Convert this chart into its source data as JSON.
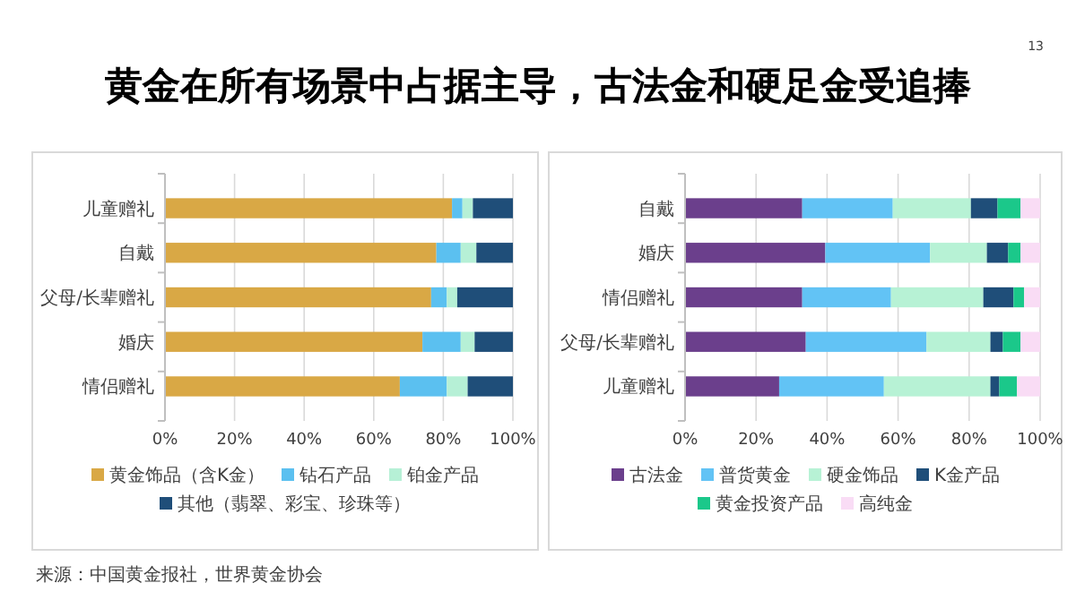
{
  "chart_data": [
    {
      "type": "bar",
      "title": "黄金在所有场景中占据主导，古法金和硬足金受追捧",
      "orientation": "horizontal",
      "stacked": true,
      "categories": [
        "儿童赠礼",
        "自戴",
        "父母/长辈赠礼",
        "婚庆",
        "情侣赠礼"
      ],
      "series": [
        {
          "name": "黄金饰品（含K金）",
          "color": "#d9a845",
          "values": [
            82.5,
            78,
            76.5,
            74,
            67.5
          ]
        },
        {
          "name": "钻石产品",
          "color": "#5bc0f0",
          "values": [
            3,
            7,
            4.5,
            11,
            13.5
          ]
        },
        {
          "name": "铂金产品",
          "color": "#b6f0d6",
          "values": [
            3,
            4.5,
            3,
            4,
            6
          ]
        },
        {
          "name": "其他（翡翠、彩宝、珍珠等）",
          "color": "#1f4e79",
          "values": [
            11.5,
            10.5,
            16,
            11,
            13
          ]
        }
      ],
      "xlim": [
        0,
        100
      ],
      "xticks": [
        {
          "value": 0,
          "label": "0%"
        },
        {
          "value": 20,
          "label": "20%"
        },
        {
          "value": 40,
          "label": "40%"
        },
        {
          "value": 60,
          "label": "60%"
        },
        {
          "value": 80,
          "label": "80%"
        },
        {
          "value": 100,
          "label": "100%"
        }
      ],
      "grid": "x",
      "legend": "bottom",
      "annotations": [
        "来源：中国黄金报社，世界黄金协会",
        "13"
      ]
    },
    {
      "type": "bar",
      "orientation": "horizontal",
      "stacked": true,
      "categories": [
        "自戴",
        "婚庆",
        "情侣赠礼",
        "父母/长辈赠礼",
        "儿童赠礼"
      ],
      "series": [
        {
          "name": "古法金",
          "color": "#6b3f8c",
          "values": [
            33,
            39.5,
            33,
            34,
            26.5
          ]
        },
        {
          "name": "普货黄金",
          "color": "#62c3f5",
          "values": [
            25.5,
            29.5,
            25,
            34,
            29.5
          ]
        },
        {
          "name": "硬金饰品",
          "color": "#b7f2d5",
          "values": [
            22,
            16,
            26,
            18,
            30
          ]
        },
        {
          "name": "K金产品",
          "color": "#1f4e79",
          "values": [
            7.5,
            6,
            8.5,
            3.5,
            2.5
          ]
        },
        {
          "name": "黄金投资产品",
          "color": "#1bc88a",
          "values": [
            6.5,
            3.5,
            3,
            5,
            5
          ]
        },
        {
          "name": "高纯金",
          "color": "#f9dcf5",
          "values": [
            5.5,
            5.5,
            4.5,
            5.5,
            6.5
          ]
        }
      ],
      "xlim": [
        0,
        100
      ],
      "xticks": [
        {
          "value": 0,
          "label": "0%"
        },
        {
          "value": 20,
          "label": "20%"
        },
        {
          "value": 40,
          "label": "40%"
        },
        {
          "value": 60,
          "label": "60%"
        },
        {
          "value": 80,
          "label": "80%"
        },
        {
          "value": 100,
          "label": "100%"
        }
      ],
      "grid": "x",
      "legend": "bottom"
    }
  ]
}
